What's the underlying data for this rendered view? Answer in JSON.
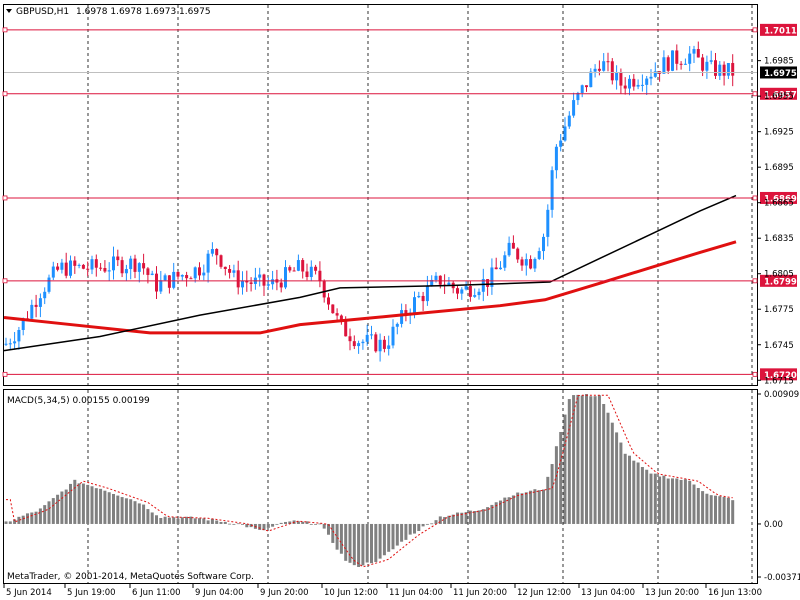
{
  "header": {
    "symbol_label": "GBPUSD,H1",
    "ohlc_text": "1.6978 1.6978 1.6973 1.6975"
  },
  "indicator": {
    "label": "MACD(5,34,5) 0.00155 0.00199"
  },
  "footer": {
    "copyright": "MetaTrader, © 2001-2014, MetaQuotes Software Corp."
  },
  "colors": {
    "bull": "#1E90FF",
    "bear": "#DC143C",
    "level_line": "#DC143C",
    "ma_slow": "#E01010",
    "ma_fast": "#000000",
    "macd_hist": "#808080",
    "macd_signal": "#E01010",
    "current_tag_bg": "#000000",
    "level_tag_bg": "#DC143C"
  },
  "chart_data": {
    "type": "candlestick",
    "price_axis": {
      "ylim": [
        1.6711,
        1.7032
      ],
      "ticks": [
        "1.6985",
        "1.6955",
        "1.6925",
        "1.6895",
        "1.6865",
        "1.6835",
        "1.6805",
        "1.6775",
        "1.6745",
        "1.6715"
      ]
    },
    "levels": [
      {
        "label": "1.7011",
        "value": 1.7011
      },
      {
        "label": "1.6957",
        "value": 1.6957
      },
      {
        "label": "1.6869",
        "value": 1.6869
      },
      {
        "label": "1.6799",
        "value": 1.6799
      },
      {
        "label": "1.6720",
        "value": 1.672
      }
    ],
    "current_price": {
      "label": "1.6975",
      "value": 1.6975
    },
    "time_labels": [
      "5 Jun 2014",
      "5 Jun 19:00",
      "6 Jun 11:00",
      "9 Jun 04:00",
      "9 Jun 20:00",
      "10 Jun 12:00",
      "11 Jun 04:00",
      "11 Jun 20:00",
      "12 Jun 12:00",
      "13 Jun 04:00",
      "13 Jun 20:00",
      "16 Jun 13:00"
    ],
    "macd_axis": {
      "ylim": [
        -0.00371,
        0.00909
      ],
      "ticks": [
        "0.00909",
        "0.00",
        "-0.00371"
      ]
    }
  }
}
